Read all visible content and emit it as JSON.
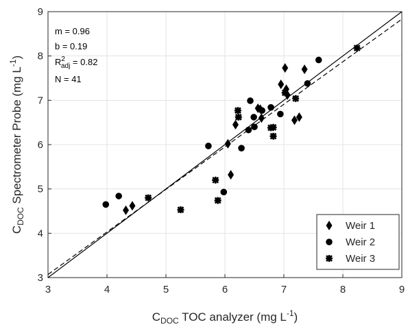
{
  "chart_data": {
    "type": "scatter",
    "xlabel": {
      "parts": [
        "C",
        "DOC",
        " TOC analyzer (mg L",
        "-1",
        ")"
      ]
    },
    "ylabel": {
      "parts": [
        "C",
        "DOC",
        " Spectrometer Probe (mg L",
        "-1",
        ")"
      ]
    },
    "xlim": [
      3,
      9
    ],
    "ylim": [
      3,
      9
    ],
    "xticks": [
      3,
      4,
      5,
      6,
      7,
      8,
      9
    ],
    "yticks": [
      3,
      4,
      5,
      6,
      7,
      8,
      9
    ],
    "grid": true,
    "legend": "lower right",
    "fit": {
      "slope": 0.96,
      "intercept": 0.19
    },
    "annotations": {
      "m": "m = 0.96",
      "b": "b = 0.19",
      "r2": {
        "base": "R",
        "sup": "2",
        "sub": "adj",
        "rest": " = 0.82"
      },
      "n": "N = 41"
    },
    "series": [
      {
        "name": "Weir 1",
        "marker": "diamond",
        "color": "#000000",
        "x": [
          4.32,
          4.43,
          6.05,
          6.1,
          6.18,
          6.56,
          6.62,
          6.95,
          7.02,
          7.04,
          7.06,
          7.18,
          7.26,
          7.35,
          6.6
        ],
        "values": [
          4.52,
          4.62,
          6.02,
          5.32,
          6.45,
          6.82,
          6.6,
          7.36,
          7.73,
          7.25,
          7.12,
          6.55,
          6.62,
          7.7,
          6.8
        ]
      },
      {
        "name": "Weir 2",
        "marker": "circle",
        "color": "#000000",
        "x": [
          3.98,
          4.2,
          5.72,
          5.98,
          6.28,
          6.4,
          6.43,
          6.5,
          6.49,
          6.63,
          6.78,
          6.94,
          7.4,
          7.59
        ],
        "values": [
          4.65,
          4.84,
          5.97,
          4.93,
          5.92,
          6.33,
          6.99,
          6.4,
          6.62,
          6.77,
          6.84,
          6.69,
          7.38,
          7.91
        ]
      },
      {
        "name": "Weir 3",
        "marker": "star",
        "color": "#000000",
        "x": [
          4.7,
          5.25,
          5.84,
          5.88,
          6.22,
          6.23,
          6.78,
          6.82,
          7.2,
          8.24,
          7.02,
          6.82
        ],
        "values": [
          4.8,
          4.53,
          5.2,
          4.74,
          6.77,
          6.62,
          6.38,
          6.19,
          7.04,
          8.18,
          7.17,
          6.39
        ]
      }
    ]
  }
}
